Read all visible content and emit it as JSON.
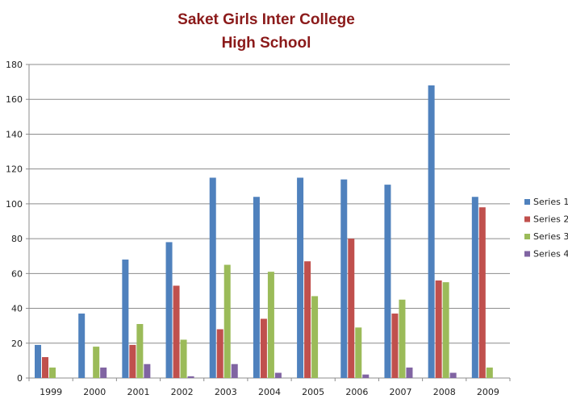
{
  "chart_data": {
    "type": "bar",
    "title_lines": [
      "Saket Girls Inter College",
      "High School"
    ],
    "title_color": "#8b1a1a",
    "categories": [
      "1999",
      "2000",
      "2001",
      "2002",
      "2003",
      "2004",
      "2005",
      "2006",
      "2007",
      "2008",
      "2009"
    ],
    "series": [
      {
        "name": "Series 1",
        "color": "#4f81bd",
        "values": [
          19,
          37,
          68,
          78,
          115,
          104,
          115,
          114,
          111,
          168,
          104
        ]
      },
      {
        "name": "Series 2",
        "color": "#c0504d",
        "values": [
          12,
          0,
          19,
          53,
          28,
          34,
          67,
          80,
          37,
          56,
          98
        ]
      },
      {
        "name": "Series 3",
        "color": "#9bbb59",
        "values": [
          6,
          18,
          31,
          22,
          65,
          61,
          47,
          29,
          45,
          55,
          6
        ]
      },
      {
        "name": "Series 4",
        "color": "#8064a2",
        "values": [
          0,
          6,
          8,
          1,
          8,
          3,
          0,
          2,
          6,
          3,
          0
        ]
      }
    ],
    "ylim": [
      0,
      180
    ],
    "yticks": [
      "0",
      "20",
      "40",
      "60",
      "80",
      "100",
      "120",
      "140",
      "160",
      "180"
    ],
    "grid": true,
    "legend_position": "right",
    "xlabel": "",
    "ylabel": ""
  }
}
